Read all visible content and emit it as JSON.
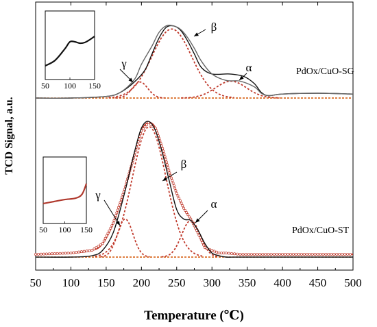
{
  "chart_data": {
    "type": "line",
    "xlabel": "Temperature (℃)",
    "ylabel": "TCD Signal, a.u.",
    "xlim": [
      50,
      500
    ],
    "xticks": [
      50,
      100,
      150,
      200,
      250,
      300,
      350,
      400,
      450,
      500
    ],
    "grid": false,
    "panels": [
      {
        "label": "PdOx/CuO-SG",
        "series": [
          {
            "role": "measured (black)",
            "color": "#111111",
            "x": [
              50,
              100,
              150,
              170,
              190,
              205,
              215,
              225,
              235,
              245,
              255,
              265,
              275,
              285,
              300,
              325,
              345,
              360,
              370,
              380,
              400,
              450,
              500
            ],
            "y": [
              0.0,
              0.0,
              0.02,
              0.07,
              0.2,
              0.35,
              0.55,
              0.75,
              0.88,
              0.9,
              0.85,
              0.72,
              0.55,
              0.38,
              0.3,
              0.3,
              0.27,
              0.18,
              0.07,
              0.03,
              0.05,
              0.06,
              0.05
            ]
          },
          {
            "role": "fitted (grey)",
            "color": "#666666",
            "x": [
              50,
              100,
              150,
              170,
              190,
              200,
              215,
              225,
              235,
              245,
              255,
              265,
              275,
              285,
              300,
              320,
              340,
              360,
              370,
              380,
              400,
              450,
              500
            ],
            "y": [
              0.0,
              0.0,
              0.02,
              0.07,
              0.23,
              0.42,
              0.65,
              0.82,
              0.9,
              0.9,
              0.86,
              0.76,
              0.62,
              0.46,
              0.3,
              0.22,
              0.21,
              0.14,
              0.06,
              0.03,
              0.05,
              0.06,
              0.05
            ]
          }
        ],
        "peaks": [
          {
            "name": "γ",
            "center": 198,
            "height": 0.2,
            "width": 11
          },
          {
            "name": "β",
            "center": 243,
            "height": 0.86,
            "width": 28
          },
          {
            "name": "α",
            "center": 327,
            "height": 0.21,
            "width": 22
          }
        ],
        "inset": {
          "xticks": [
            50,
            100,
            150
          ],
          "x": [
            50,
            70,
            90,
            100,
            110,
            120,
            130,
            140,
            150
          ],
          "y": [
            0.2,
            0.28,
            0.45,
            0.55,
            0.55,
            0.53,
            0.54,
            0.58,
            0.63
          ]
        }
      },
      {
        "label": "PdOx/CuO-ST",
        "series": [
          {
            "role": "measured (red, open circles)",
            "color": "#c0392b",
            "x": [
              50,
              100,
              130,
              145,
              160,
              175,
              190,
              200,
              210,
              220,
              230,
              240,
              250,
              260,
              270,
              280,
              290,
              300,
              310,
              320,
              340,
              400,
              450,
              500
            ],
            "y": [
              0.02,
              0.03,
              0.05,
              0.1,
              0.25,
              0.48,
              0.75,
              0.93,
              0.99,
              0.95,
              0.8,
              0.62,
              0.47,
              0.36,
              0.28,
              0.18,
              0.07,
              0.05,
              0.03,
              0.03,
              0.02,
              0.02,
              0.02,
              0.02
            ]
          },
          {
            "role": "fitted (black)",
            "color": "#111111",
            "x": [
              50,
              100,
              130,
              145,
              160,
              175,
              190,
              200,
              210,
              220,
              230,
              240,
              250,
              260,
              270,
              280,
              290,
              300,
              310,
              320,
              340,
              400,
              450,
              500
            ],
            "y": [
              0.0,
              0.0,
              0.01,
              0.05,
              0.18,
              0.45,
              0.77,
              0.95,
              1.0,
              0.93,
              0.76,
              0.55,
              0.35,
              0.28,
              0.27,
              0.2,
              0.1,
              0.03,
              0.01,
              0.0,
              0.0,
              0.0,
              0.0,
              0.0
            ]
          }
        ],
        "peaks": [
          {
            "name": "γ",
            "center": 177,
            "height": 0.28,
            "width": 11
          },
          {
            "name": "β",
            "center": 211,
            "height": 0.96,
            "width": 24
          },
          {
            "name": "α",
            "center": 270,
            "height": 0.27,
            "width": 13
          }
        ],
        "inset": {
          "xticks": [
            50,
            100,
            150
          ],
          "x": [
            50,
            75,
            100,
            125,
            140,
            150
          ],
          "y": [
            0.3,
            0.33,
            0.36,
            0.38,
            0.44,
            0.6
          ]
        }
      }
    ]
  }
}
